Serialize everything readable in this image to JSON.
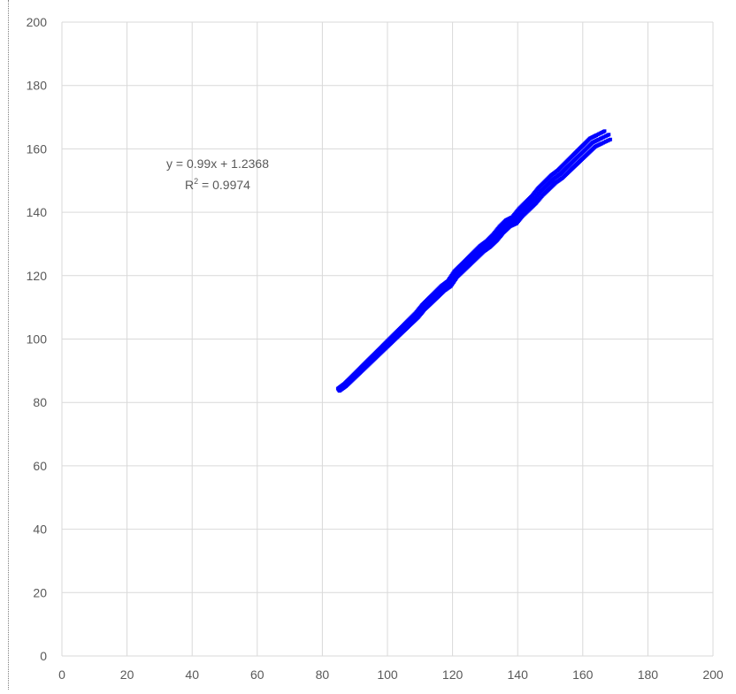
{
  "chart_data": {
    "type": "scatter",
    "title": "",
    "xlabel": "",
    "ylabel": "",
    "xlim": [
      0,
      200
    ],
    "ylim": [
      0,
      200
    ],
    "x_ticks": [
      0,
      20,
      40,
      60,
      80,
      100,
      120,
      140,
      160,
      180,
      200
    ],
    "y_ticks": [
      0,
      20,
      40,
      60,
      80,
      100,
      120,
      140,
      160,
      180,
      200
    ],
    "grid": true,
    "legend": "none",
    "series": [
      {
        "color": "#0000ff",
        "points": [
          [
            85,
            84
          ],
          [
            87,
            85.5
          ],
          [
            89,
            87.5
          ],
          [
            91,
            89.5
          ],
          [
            93,
            91.5
          ],
          [
            95,
            93.5
          ],
          [
            97,
            95.5
          ],
          [
            99,
            97.5
          ],
          [
            101,
            99.5
          ],
          [
            103,
            101.5
          ],
          [
            105,
            103.5
          ],
          [
            107,
            105.5
          ],
          [
            109,
            107.5
          ],
          [
            111,
            110
          ],
          [
            113,
            112
          ],
          [
            115,
            114
          ],
          [
            117,
            116
          ],
          [
            119,
            117.5
          ],
          [
            121,
            120.5
          ],
          [
            123,
            122.5
          ],
          [
            125,
            124.5
          ],
          [
            127,
            126.5
          ],
          [
            129,
            128.5
          ],
          [
            131,
            130
          ],
          [
            133,
            132
          ],
          [
            135,
            134.5
          ],
          [
            137,
            136.5
          ],
          [
            139,
            137.5
          ],
          [
            141,
            140
          ],
          [
            143,
            142
          ],
          [
            145,
            144
          ],
          [
            147,
            146.5
          ],
          [
            149,
            148.5
          ],
          [
            151,
            150.5
          ],
          [
            153,
            152
          ],
          [
            155,
            154
          ],
          [
            157,
            156
          ],
          [
            159,
            158
          ],
          [
            161,
            160
          ],
          [
            163,
            162
          ],
          [
            165,
            163
          ],
          [
            168,
            164.5
          ]
        ]
      }
    ],
    "trendline": {
      "slope": 0.99,
      "intercept": 1.2368,
      "equation": "y = 0.99x + 1.2368",
      "r2_label": "R",
      "r2_sup": "2",
      "r2_value": " = 0.9974"
    }
  }
}
